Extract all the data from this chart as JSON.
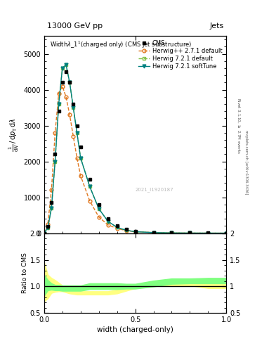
{
  "title_top": "13000 GeV pp",
  "title_right": "Jets",
  "plot_title": "Width$\\lambda\\_1^1$(charged only) (CMS jet substructure)",
  "xlabel": "width (charged-only)",
  "ylabel_ratio": "Ratio to CMS",
  "watermark": "2021_I1920187",
  "cms_x": [
    0.0,
    0.02,
    0.04,
    0.06,
    0.08,
    0.1,
    0.12,
    0.14,
    0.16,
    0.18,
    0.2,
    0.25,
    0.3,
    0.35,
    0.4,
    0.45,
    0.5,
    0.6,
    0.7,
    0.8,
    0.9,
    1.0
  ],
  "cms_y": [
    0.0,
    180,
    850,
    2200,
    3400,
    4200,
    4500,
    4200,
    3600,
    3000,
    2400,
    1500,
    800,
    400,
    200,
    100,
    50,
    20,
    8,
    3,
    1,
    0
  ],
  "herwig_pp_y": [
    0.0,
    250,
    1200,
    2800,
    3900,
    4100,
    3800,
    3300,
    2700,
    2100,
    1600,
    900,
    450,
    230,
    130,
    70,
    40,
    15,
    6,
    2,
    0.5,
    0
  ],
  "herwig7_def_y": [
    0.0,
    150,
    700,
    2000,
    3600,
    4600,
    4700,
    4200,
    3500,
    2800,
    2100,
    1300,
    680,
    330,
    160,
    80,
    40,
    15,
    5,
    2,
    0.5,
    0
  ],
  "herwig7_soft_y": [
    0.0,
    150,
    700,
    2000,
    3600,
    4600,
    4700,
    4200,
    3500,
    2800,
    2100,
    1300,
    680,
    330,
    160,
    80,
    40,
    15,
    5,
    2,
    0.5,
    0
  ],
  "cms_color": "black",
  "herwig_pp_color": "#e07820",
  "herwig7_def_color": "#80c040",
  "herwig7_soft_color": "#008080",
  "ylim_main": [
    0,
    5500
  ],
  "ylim_ratio": [
    0.5,
    2.0
  ],
  "xlim": [
    0.0,
    1.0
  ],
  "ratio_band_yellow_lo": [
    0.72,
    0.78,
    0.88,
    0.9,
    0.91,
    0.91,
    0.89,
    0.87,
    0.86,
    0.85,
    0.85,
    0.85,
    0.85,
    0.85,
    0.87,
    0.92,
    0.97,
    1.02,
    1.02,
    1.02,
    0.97,
    0.97
  ],
  "ratio_band_yellow_hi": [
    1.45,
    1.22,
    1.16,
    1.12,
    1.07,
    1.02,
    0.98,
    0.95,
    0.93,
    0.91,
    0.91,
    0.91,
    0.91,
    0.91,
    0.94,
    0.99,
    1.03,
    1.09,
    1.12,
    1.12,
    1.06,
    1.06
  ],
  "ratio_band_green_lo": [
    0.83,
    0.93,
    0.94,
    0.93,
    0.93,
    0.92,
    0.92,
    0.92,
    0.92,
    0.92,
    0.92,
    0.95,
    0.95,
    0.95,
    0.95,
    0.96,
    0.96,
    1.0,
    1.05,
    1.06,
    1.06,
    1.06
  ],
  "ratio_band_green_hi": [
    1.22,
    1.12,
    1.06,
    1.03,
    1.03,
    1.02,
    1.02,
    1.02,
    1.02,
    1.02,
    1.02,
    1.06,
    1.06,
    1.06,
    1.06,
    1.05,
    1.05,
    1.11,
    1.15,
    1.15,
    1.16,
    1.16
  ]
}
